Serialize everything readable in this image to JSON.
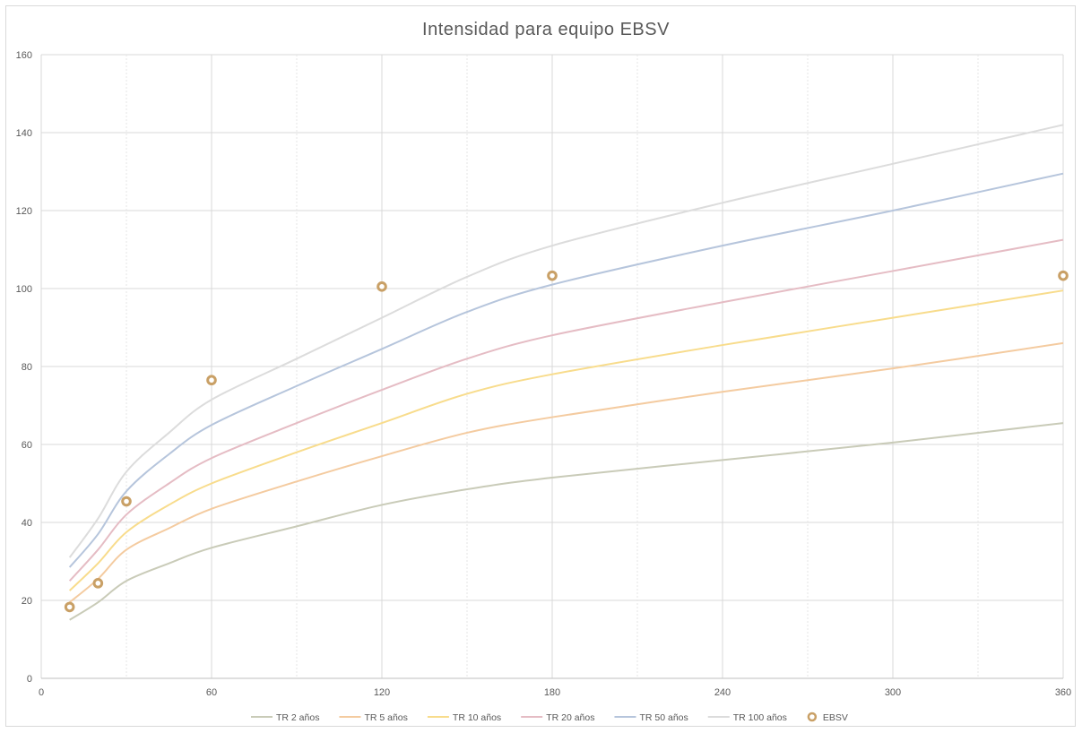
{
  "chart_data": {
    "type": "line",
    "title": "Intensidad para equipo EBSV",
    "xlabel": "",
    "ylabel": "",
    "xlim": [
      0,
      360
    ],
    "ylim": [
      0,
      160
    ],
    "x_ticks": [
      "0",
      "60",
      "120",
      "180",
      "240",
      "300",
      "360"
    ],
    "y_ticks": [
      "0",
      "20",
      "40",
      "60",
      "80",
      "100",
      "120",
      "140",
      "160"
    ],
    "grid": true,
    "legend_position": "bottom",
    "series": [
      {
        "name": "TR 2 años",
        "color": "#c9cbb8",
        "x": [
          10,
          20,
          30,
          45,
          60,
          90,
          120,
          150,
          180,
          240,
          300,
          360
        ],
        "values": [
          15.0,
          19.5,
          25.0,
          29.5,
          33.5,
          39.0,
          44.5,
          48.5,
          51.5,
          56.0,
          60.5,
          65.5
        ]
      },
      {
        "name": "TR 5 años",
        "color": "#f4cba0",
        "x": [
          10,
          20,
          30,
          45,
          60,
          90,
          120,
          150,
          180,
          240,
          300,
          360
        ],
        "values": [
          19.5,
          25.5,
          33.0,
          38.5,
          43.5,
          50.5,
          57.0,
          63.0,
          67.0,
          73.5,
          79.5,
          86.0
        ]
      },
      {
        "name": "TR 10 años",
        "color": "#f8dc8c",
        "x": [
          10,
          20,
          30,
          45,
          60,
          90,
          120,
          150,
          180,
          240,
          300,
          360
        ],
        "values": [
          22.5,
          29.5,
          37.5,
          44.5,
          50.0,
          58.0,
          65.5,
          73.0,
          78.0,
          85.5,
          92.5,
          99.5
        ]
      },
      {
        "name": "TR 20 años",
        "color": "#e5bcc4",
        "x": [
          10,
          20,
          30,
          45,
          60,
          90,
          120,
          150,
          180,
          240,
          300,
          360
        ],
        "values": [
          25.0,
          33.0,
          42.0,
          50.0,
          56.5,
          65.5,
          74.0,
          82.0,
          88.0,
          96.5,
          104.5,
          112.5
        ]
      },
      {
        "name": "TR 50 años",
        "color": "#b6c5dc",
        "x": [
          10,
          20,
          30,
          45,
          60,
          90,
          120,
          150,
          180,
          240,
          300,
          360
        ],
        "values": [
          28.5,
          37.0,
          48.0,
          57.5,
          65.0,
          75.0,
          84.5,
          94.0,
          101.0,
          111.0,
          120.0,
          129.5
        ]
      },
      {
        "name": "TR 100 años",
        "color": "#dcdcdc",
        "x": [
          10,
          20,
          30,
          45,
          60,
          90,
          120,
          150,
          180,
          240,
          300,
          360
        ],
        "values": [
          31.0,
          41.0,
          53.0,
          63.0,
          71.5,
          82.0,
          92.5,
          103.0,
          111.0,
          122.0,
          132.0,
          142.0
        ]
      }
    ],
    "points": {
      "name": "EBSV",
      "color": "#c9a066",
      "x": [
        10,
        20,
        30,
        60,
        120,
        180,
        360
      ],
      "values": [
        18.3,
        24.4,
        45.4,
        76.5,
        100.5,
        103.3,
        103.3
      ]
    }
  }
}
